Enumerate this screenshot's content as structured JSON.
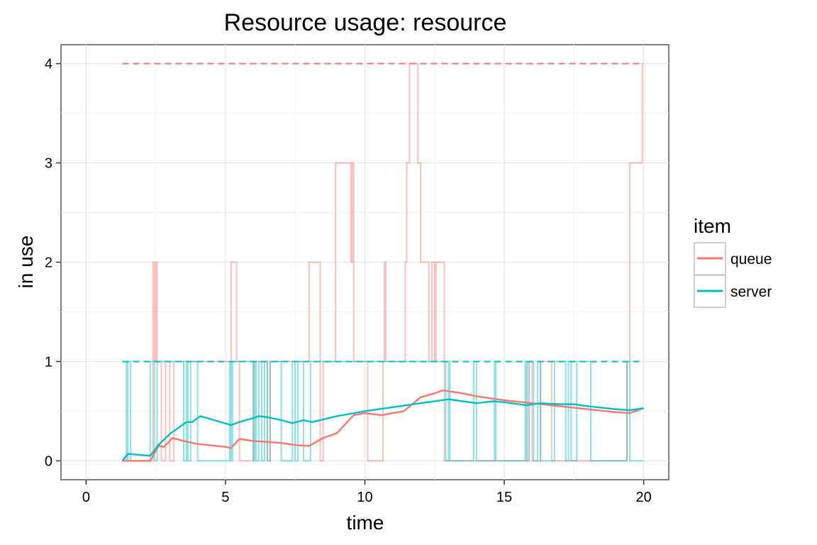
{
  "chart_data": {
    "type": "line",
    "title": "Resource usage: resource",
    "xlabel": "time",
    "ylabel": "in use",
    "xlim": [
      -0.9,
      20.9
    ],
    "ylim": [
      -0.19,
      4.19
    ],
    "x_ticks": [
      0,
      5,
      10,
      15,
      20
    ],
    "y_ticks": [
      0,
      1,
      2,
      3,
      4
    ],
    "x_tick_labels": [
      "0",
      "5",
      "10",
      "15",
      "20"
    ],
    "y_tick_labels": [
      "0",
      "1",
      "2",
      "3",
      "4"
    ],
    "grid": true,
    "legend": {
      "title": "item",
      "position": "right",
      "entries": [
        "queue",
        "server"
      ]
    },
    "series": [
      {
        "name": "queue",
        "color": "#F8766D",
        "capacity": 4,
        "instant_steps": [
          [
            1.3,
            0
          ],
          [
            2.4,
            2
          ],
          [
            2.45,
            1
          ],
          [
            2.5,
            2
          ],
          [
            2.55,
            1
          ],
          [
            2.7,
            0
          ],
          [
            2.85,
            1
          ],
          [
            3.0,
            0
          ],
          [
            3.15,
            1
          ],
          [
            5.2,
            2
          ],
          [
            5.4,
            1
          ],
          [
            5.5,
            0
          ],
          [
            6.0,
            1
          ],
          [
            6.5,
            0
          ],
          [
            6.6,
            1
          ],
          [
            8.0,
            2
          ],
          [
            8.4,
            0
          ],
          [
            8.5,
            1
          ],
          [
            8.95,
            3
          ],
          [
            9.5,
            2
          ],
          [
            9.55,
            3
          ],
          [
            9.6,
            1
          ],
          [
            10.1,
            0
          ],
          [
            10.65,
            1
          ],
          [
            10.7,
            2
          ],
          [
            10.75,
            1
          ],
          [
            11.45,
            2
          ],
          [
            11.5,
            3
          ],
          [
            11.6,
            4
          ],
          [
            11.9,
            3
          ],
          [
            12.0,
            2
          ],
          [
            12.3,
            1
          ],
          [
            12.4,
            2
          ],
          [
            12.5,
            1
          ],
          [
            12.55,
            2
          ],
          [
            12.85,
            0
          ],
          [
            15.85,
            1
          ],
          [
            16.0,
            0
          ],
          [
            16.3,
            1
          ],
          [
            16.7,
            0
          ],
          [
            19.4,
            1
          ],
          [
            19.5,
            3
          ],
          [
            19.95,
            4
          ],
          [
            20.0,
            4
          ]
        ],
        "running_average": [
          [
            1.3,
            0
          ],
          [
            2.3,
            0
          ],
          [
            2.6,
            0.15
          ],
          [
            2.8,
            0.14
          ],
          [
            3.1,
            0.23
          ],
          [
            3.5,
            0.2
          ],
          [
            4.0,
            0.17
          ],
          [
            5.0,
            0.14
          ],
          [
            5.2,
            0.13
          ],
          [
            5.5,
            0.22
          ],
          [
            6.0,
            0.2
          ],
          [
            6.5,
            0.19
          ],
          [
            7.0,
            0.18
          ],
          [
            7.5,
            0.16
          ],
          [
            8.0,
            0.15
          ],
          [
            8.5,
            0.23
          ],
          [
            9.0,
            0.28
          ],
          [
            9.6,
            0.46
          ],
          [
            10.0,
            0.48
          ],
          [
            10.6,
            0.46
          ],
          [
            11.0,
            0.48
          ],
          [
            11.4,
            0.5
          ],
          [
            11.7,
            0.57
          ],
          [
            12.0,
            0.64
          ],
          [
            12.5,
            0.68
          ],
          [
            12.8,
            0.71
          ],
          [
            13.5,
            0.68
          ],
          [
            14.0,
            0.65
          ],
          [
            15.0,
            0.61
          ],
          [
            16.0,
            0.58
          ],
          [
            17.0,
            0.55
          ],
          [
            18.0,
            0.52
          ],
          [
            19.0,
            0.49
          ],
          [
            19.5,
            0.48
          ],
          [
            20.0,
            0.53
          ]
        ]
      },
      {
        "name": "server",
        "color": "#00BFC4",
        "capacity": 1,
        "instant_steps": [
          [
            1.3,
            1
          ],
          [
            1.45,
            0
          ],
          [
            1.5,
            1
          ],
          [
            1.6,
            0
          ],
          [
            2.3,
            1
          ],
          [
            2.45,
            0
          ],
          [
            2.55,
            1
          ],
          [
            3.5,
            0
          ],
          [
            3.6,
            1
          ],
          [
            3.65,
            0
          ],
          [
            3.75,
            1
          ],
          [
            4.0,
            0
          ],
          [
            5.15,
            1
          ],
          [
            5.2,
            0
          ],
          [
            5.25,
            1
          ],
          [
            6.0,
            0
          ],
          [
            6.05,
            1
          ],
          [
            6.1,
            0
          ],
          [
            6.2,
            1
          ],
          [
            6.3,
            0
          ],
          [
            6.4,
            1
          ],
          [
            6.5,
            0
          ],
          [
            6.6,
            1
          ],
          [
            7.0,
            0
          ],
          [
            7.4,
            1
          ],
          [
            7.5,
            0
          ],
          [
            7.6,
            1
          ],
          [
            7.8,
            0
          ],
          [
            8.05,
            1
          ],
          [
            12.9,
            0
          ],
          [
            13.0,
            1
          ],
          [
            13.05,
            0
          ],
          [
            13.9,
            1
          ],
          [
            14.0,
            0
          ],
          [
            14.65,
            1
          ],
          [
            14.7,
            0
          ],
          [
            15.75,
            1
          ],
          [
            15.8,
            0
          ],
          [
            15.9,
            1
          ],
          [
            16.05,
            0
          ],
          [
            16.2,
            1
          ],
          [
            16.3,
            0
          ],
          [
            16.8,
            1
          ],
          [
            17.2,
            0
          ],
          [
            17.3,
            1
          ],
          [
            17.4,
            0
          ],
          [
            17.6,
            1
          ],
          [
            18.1,
            0
          ],
          [
            19.4,
            1
          ],
          [
            19.5,
            0
          ],
          [
            20.0,
            0
          ]
        ],
        "running_average": [
          [
            1.3,
            0
          ],
          [
            1.5,
            0.07
          ],
          [
            2.3,
            0.05
          ],
          [
            2.6,
            0.16
          ],
          [
            3.0,
            0.27
          ],
          [
            3.5,
            0.37
          ],
          [
            3.6,
            0.39
          ],
          [
            3.8,
            0.39
          ],
          [
            4.1,
            0.45
          ],
          [
            5.2,
            0.36
          ],
          [
            5.6,
            0.4
          ],
          [
            6.0,
            0.43
          ],
          [
            6.2,
            0.45
          ],
          [
            6.5,
            0.44
          ],
          [
            7.0,
            0.41
          ],
          [
            7.4,
            0.38
          ],
          [
            7.8,
            0.41
          ],
          [
            8.1,
            0.39
          ],
          [
            9.0,
            0.45
          ],
          [
            10.0,
            0.5
          ],
          [
            11.0,
            0.54
          ],
          [
            12.0,
            0.58
          ],
          [
            13.0,
            0.62
          ],
          [
            14.0,
            0.58
          ],
          [
            14.6,
            0.6
          ],
          [
            15.0,
            0.59
          ],
          [
            15.8,
            0.56
          ],
          [
            16.3,
            0.58
          ],
          [
            17.0,
            0.57
          ],
          [
            17.5,
            0.57
          ],
          [
            18.0,
            0.55
          ],
          [
            19.0,
            0.52
          ],
          [
            19.5,
            0.51
          ],
          [
            20.0,
            0.53
          ]
        ]
      }
    ]
  }
}
